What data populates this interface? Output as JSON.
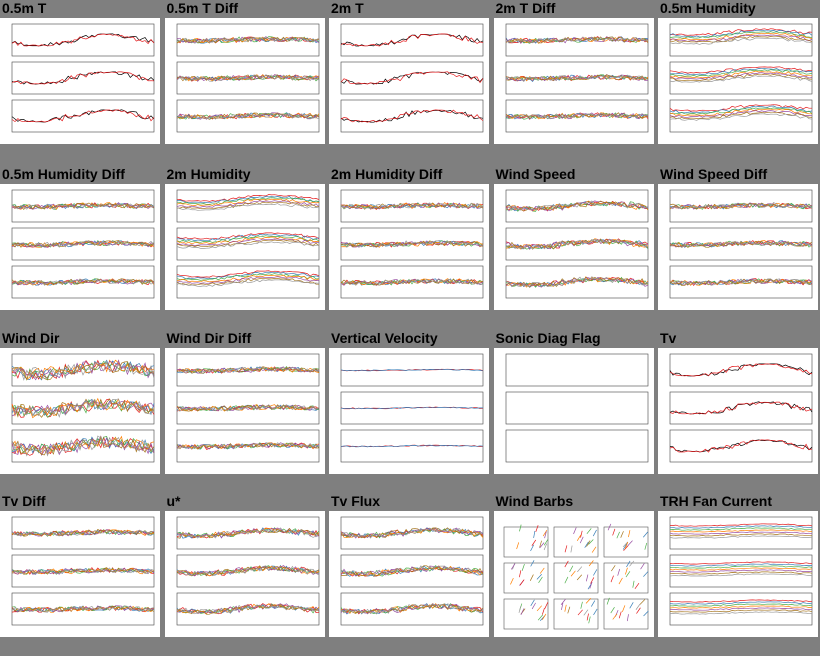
{
  "colors": {
    "background": "#7f7f7f",
    "panel": "#ffffff",
    "series": [
      "#000000",
      "#e41a1c",
      "#377eb8",
      "#4daf4a",
      "#ff7f00",
      "#984ea3",
      "#a6761d",
      "#999999"
    ]
  },
  "plots": [
    {
      "title": "0.5m T",
      "kind": "temp"
    },
    {
      "title": "0.5m T Diff",
      "kind": "diff"
    },
    {
      "title": "2m T",
      "kind": "temp"
    },
    {
      "title": "2m T Diff",
      "kind": "diff"
    },
    {
      "title": "0.5m Humidity",
      "kind": "humid"
    },
    {
      "title": "0.5m Humidity Diff",
      "kind": "diff"
    },
    {
      "title": "2m Humidity",
      "kind": "humid"
    },
    {
      "title": "2m Humidity Diff",
      "kind": "diff"
    },
    {
      "title": "Wind Speed",
      "kind": "noisy"
    },
    {
      "title": "Wind Speed Diff",
      "kind": "diff"
    },
    {
      "title": "Wind Dir",
      "kind": "dir"
    },
    {
      "title": "Wind Dir Diff",
      "kind": "diff"
    },
    {
      "title": "Vertical Velocity",
      "kind": "flat"
    },
    {
      "title": "Sonic Diag Flag",
      "kind": "empty"
    },
    {
      "title": "Tv",
      "kind": "temp"
    },
    {
      "title": "Tv Diff",
      "kind": "diff"
    },
    {
      "title": "u*",
      "kind": "noisy"
    },
    {
      "title": "Tv Flux",
      "kind": "noisy"
    },
    {
      "title": "Wind Barbs",
      "kind": "barbs"
    },
    {
      "title": "TRH Fan Current",
      "kind": "fan"
    }
  ]
}
